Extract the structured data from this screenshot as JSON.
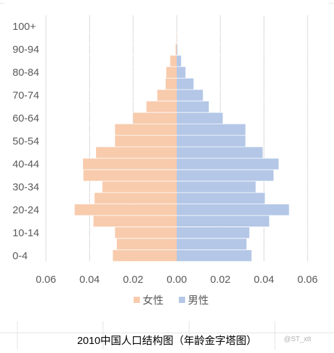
{
  "caption": "2010中国人口结构图（年龄金字塔图）",
  "watermark": "@ST_xtt",
  "colors": {
    "female": "#F8CBAD",
    "male": "#B4C7E7",
    "axis_text": "#595959",
    "grid": "#D9D9D9",
    "sheet_grid": "#E3E3E3"
  },
  "chart_data": {
    "type": "bar",
    "orientation": "horizontal",
    "title": "",
    "categories": [
      "0-4",
      "5-9",
      "10-14",
      "15-19",
      "20-24",
      "25-29",
      "30-34",
      "35-39",
      "40-44",
      "45-49",
      "50-54",
      "55-59",
      "60-64",
      "65-69",
      "70-74",
      "75-79",
      "80-84",
      "85-89",
      "90-94",
      "95-99",
      "100+"
    ],
    "visible_category_labels": [
      "0-4",
      "10-14",
      "20-24",
      "30-34",
      "40-44",
      "50-54",
      "60-64",
      "70-74",
      "80-84",
      "90-94",
      "100+"
    ],
    "series": [
      {
        "name": "女性",
        "side": "left",
        "values": [
          0.0293,
          0.0275,
          0.0283,
          0.0382,
          0.0468,
          0.0377,
          0.0341,
          0.0428,
          0.043,
          0.037,
          0.0283,
          0.0283,
          0.02,
          0.0139,
          0.0089,
          0.0051,
          0.0048,
          0.003,
          0.0005,
          0.0001,
          0.0
        ]
      },
      {
        "name": "男性",
        "side": "right",
        "values": [
          0.0343,
          0.032,
          0.0333,
          0.0424,
          0.0515,
          0.0404,
          0.0362,
          0.0444,
          0.0467,
          0.0394,
          0.0315,
          0.0315,
          0.0211,
          0.0147,
          0.012,
          0.0077,
          0.004,
          0.002,
          0.0003,
          0.0,
          0.0
        ]
      }
    ],
    "xlim": [
      -0.06,
      0.06
    ],
    "x_ticks": [
      -0.06,
      -0.04,
      -0.02,
      0,
      0.02,
      0.04,
      0.06
    ],
    "x_tick_labels": [
      "0.06",
      "0.04",
      "0.02",
      "0.00",
      "0.02",
      "0.04",
      "0.06"
    ],
    "legend": {
      "position": "bottom",
      "entries": [
        "女性",
        "男性"
      ]
    },
    "grid": {
      "vertical": true,
      "horizontal": false
    }
  }
}
